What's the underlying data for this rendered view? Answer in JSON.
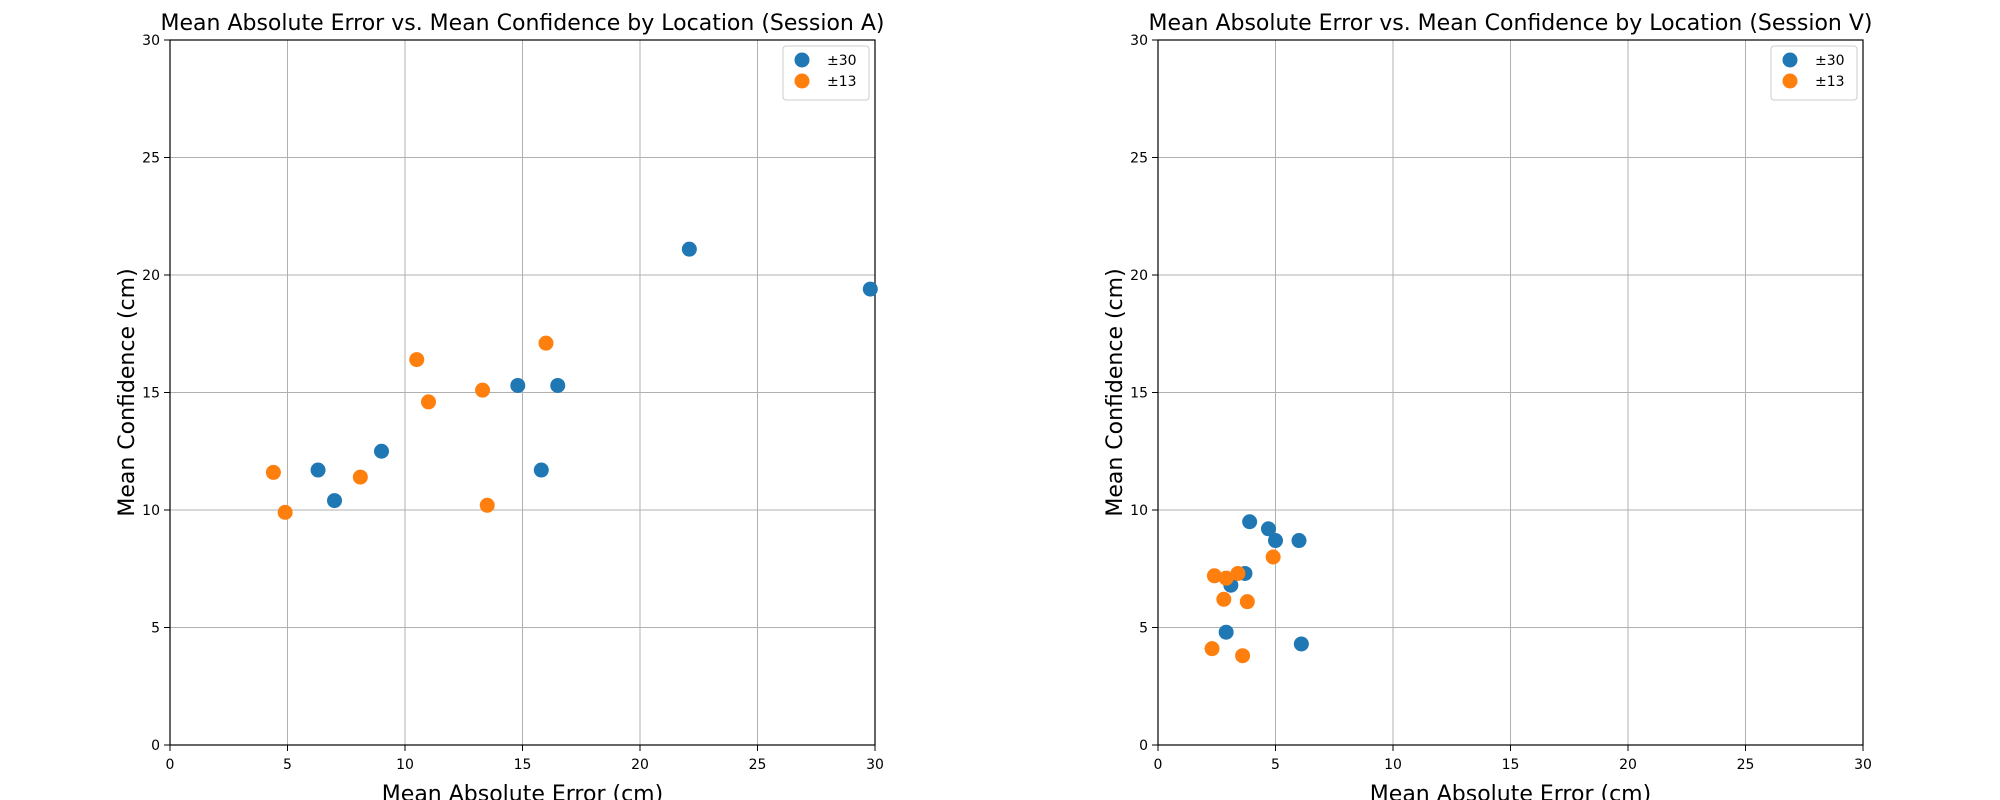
{
  "chart_data": [
    {
      "type": "scatter",
      "title": "Mean Absolute Error vs. Mean Confidence by Location (Session A)",
      "xlabel": "Mean Absolute Error (cm)",
      "ylabel": "Mean Confidence (cm)",
      "xlim": [
        0,
        30
      ],
      "ylim": [
        0,
        30
      ],
      "xticks": [
        "0",
        "5",
        "10",
        "15",
        "20",
        "25",
        "30"
      ],
      "yticks": [
        "0",
        "5",
        "10",
        "15",
        "20",
        "25",
        "30"
      ],
      "grid": true,
      "legend_position": "top-right",
      "series": [
        {
          "name": "±30",
          "color": "#1f77b4",
          "points": [
            [
              6.3,
              11.7
            ],
            [
              7.0,
              10.4
            ],
            [
              9.0,
              12.5
            ],
            [
              14.8,
              15.3
            ],
            [
              16.5,
              15.3
            ],
            [
              15.8,
              11.7
            ],
            [
              22.1,
              21.1
            ],
            [
              29.8,
              19.4
            ]
          ]
        },
        {
          "name": "±13",
          "color": "#ff7f0e",
          "points": [
            [
              4.4,
              11.6
            ],
            [
              4.9,
              9.9
            ],
            [
              8.1,
              11.4
            ],
            [
              10.5,
              16.4
            ],
            [
              11.0,
              14.6
            ],
            [
              13.3,
              15.1
            ],
            [
              13.5,
              10.2
            ],
            [
              16.0,
              17.1
            ]
          ]
        }
      ]
    },
    {
      "type": "scatter",
      "title": "Mean Absolute Error vs. Mean Confidence by Location (Session V)",
      "xlabel": "Mean Absolute Error (cm)",
      "ylabel": "Mean Confidence (cm)",
      "xlim": [
        0,
        30
      ],
      "ylim": [
        0,
        30
      ],
      "xticks": [
        "0",
        "5",
        "10",
        "15",
        "20",
        "25",
        "30"
      ],
      "yticks": [
        "0",
        "5",
        "10",
        "15",
        "20",
        "25",
        "30"
      ],
      "grid": true,
      "legend_position": "top-right",
      "series": [
        {
          "name": "±30",
          "color": "#1f77b4",
          "points": [
            [
              2.9,
              4.8
            ],
            [
              3.1,
              6.8
            ],
            [
              3.7,
              7.3
            ],
            [
              3.9,
              9.5
            ],
            [
              4.7,
              9.2
            ],
            [
              5.0,
              8.7
            ],
            [
              6.0,
              8.7
            ],
            [
              6.1,
              4.3
            ]
          ]
        },
        {
          "name": "±13",
          "color": "#ff7f0e",
          "points": [
            [
              2.3,
              4.1
            ],
            [
              2.4,
              7.2
            ],
            [
              2.8,
              6.2
            ],
            [
              2.9,
              7.1
            ],
            [
              3.4,
              7.3
            ],
            [
              3.6,
              3.8
            ],
            [
              3.8,
              6.1
            ],
            [
              4.9,
              8.0
            ]
          ]
        }
      ]
    }
  ]
}
